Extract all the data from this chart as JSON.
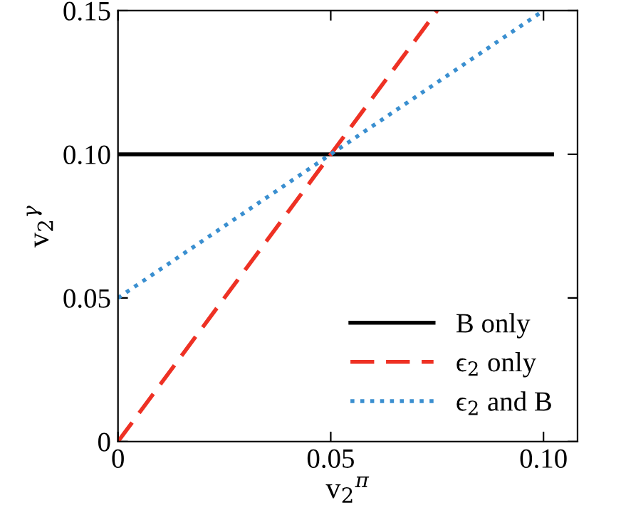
{
  "chart_data": {
    "type": "line",
    "xlabel": "v$_{2}$$^{π}$",
    "ylabel": "v$_{2}$$^{γ}$",
    "xlim": [
      0,
      0.108
    ],
    "ylim": [
      0,
      0.15
    ],
    "xticks": [
      0,
      0.05,
      {
        "value": 0.1,
        "label": "0.10"
      }
    ],
    "yticks": [
      0,
      0.05,
      {
        "value": 0.1,
        "label": "0.10"
      },
      0.15
    ],
    "grid": false,
    "legend": "bottom right",
    "marker": "none",
    "series": [
      {
        "name": "B only",
        "color": "#000000",
        "line_style": "solid",
        "x": [
          0,
          0.102
        ],
        "values": [
          0.1,
          0.1
        ]
      },
      {
        "name": "ϵ$_{2}$ only",
        "color": "#ee3124",
        "line_style": "dashed",
        "x": [
          0,
          0.075
        ],
        "values": [
          0,
          0.15
        ]
      },
      {
        "name": "ϵ$_{2}$ and B",
        "color": "#3a8fd0",
        "line_style": "dotted",
        "x": [
          0,
          0.1
        ],
        "values": [
          0.05,
          0.15
        ]
      }
    ]
  }
}
